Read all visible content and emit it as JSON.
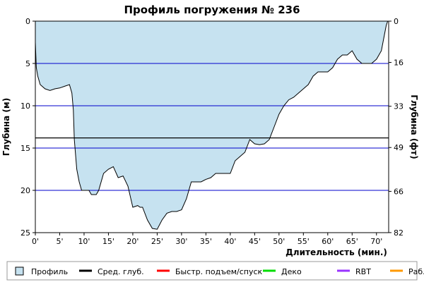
{
  "chart_data": {
    "type": "area",
    "title": "Профиль погружения № 236",
    "xlabel": "Длительность (мин.)",
    "ylabel_left": "Глубина (м)",
    "ylabel_right": "Глубина (фт)",
    "x_range": [
      0,
      72.5
    ],
    "y_range": [
      0,
      25
    ],
    "y_inverted": true,
    "x_ticks": [
      0,
      5,
      10,
      15,
      20,
      25,
      30,
      35,
      40,
      45,
      50,
      55,
      60,
      65,
      70
    ],
    "x_tick_labels": [
      "0'",
      "5'",
      "10'",
      "15'",
      "20'",
      "25'",
      "30'",
      "35'",
      "40'",
      "45'",
      "50'",
      "55'",
      "60'",
      "65'",
      "70'"
    ],
    "y_ticks_left": [
      0,
      5,
      10,
      15,
      20,
      25
    ],
    "y_tick_labels_left": [
      "0",
      "5",
      "10",
      "15",
      "20",
      "25"
    ],
    "y_ticks_right_ft": [
      0,
      16,
      33,
      49,
      66,
      82
    ],
    "y_tick_labels_right": [
      "0",
      "16",
      "33",
      "49",
      "66",
      "82"
    ],
    "grid": "horizontal",
    "colors": {
      "profile_fill": "#c6e2f0",
      "profile_line": "#000000",
      "grid_line": "#0000cc",
      "avg_depth_line": "#000000",
      "ascent_line": "#ff0000",
      "deco": "#00dd00",
      "rbt": "#9933ff",
      "work": "#ff9900"
    },
    "average_depth": 13.8,
    "series": [
      {
        "name": "Профиль",
        "x": [
          0,
          0.2,
          0.5,
          1,
          2,
          3,
          4,
          5,
          6,
          7,
          7.5,
          7.8,
          8,
          8.5,
          9,
          9.5,
          10,
          11,
          11.5,
          12.5,
          13,
          14,
          15,
          16,
          17,
          18,
          19,
          20,
          21,
          21.5,
          22,
          23,
          24,
          25,
          26,
          27,
          28,
          29,
          30,
          31,
          32,
          33,
          34,
          35,
          36,
          37,
          38,
          39,
          40,
          41,
          42,
          43,
          44,
          45,
          46,
          47,
          48,
          49,
          50,
          51,
          52,
          53,
          54,
          55,
          56,
          57,
          58,
          59,
          60,
          61,
          62,
          63,
          64,
          65,
          66,
          67,
          68,
          69,
          70,
          71,
          71.5,
          72,
          72.3
        ],
        "y": [
          2.5,
          5.5,
          6.5,
          7.5,
          8.0,
          8.2,
          8.0,
          7.9,
          7.7,
          7.5,
          8.5,
          10.5,
          14.0,
          17.5,
          19.0,
          20.0,
          20.0,
          20.0,
          20.5,
          20.5,
          20.0,
          18.0,
          17.5,
          17.2,
          18.5,
          18.3,
          19.5,
          22.0,
          21.8,
          22.0,
          22.0,
          23.5,
          24.5,
          24.6,
          23.5,
          22.7,
          22.5,
          22.5,
          22.3,
          21.0,
          19.0,
          19.0,
          19.0,
          18.7,
          18.5,
          18.0,
          18.0,
          18.0,
          18.0,
          16.5,
          16.0,
          15.5,
          14.0,
          14.5,
          14.6,
          14.5,
          14.0,
          12.5,
          11.0,
          10.0,
          9.3,
          9.0,
          8.5,
          8.0,
          7.5,
          6.5,
          6.0,
          6.0,
          6.0,
          5.5,
          4.5,
          4.0,
          4.0,
          3.5,
          4.5,
          5.0,
          5.0,
          5.0,
          4.5,
          3.5,
          2.0,
          0.5,
          0
        ]
      }
    ],
    "legend": {
      "placement": "bottom",
      "items": [
        {
          "label": "Профиль",
          "type": "box",
          "color": "#c6e2f0"
        },
        {
          "label": "Сред. глуб.",
          "type": "line",
          "color": "#000000"
        },
        {
          "label": "Быстр. подъем/спуск",
          "type": "line",
          "color": "#ff0000"
        },
        {
          "label": "Деко",
          "type": "line",
          "color": "#00dd00"
        },
        {
          "label": "RBT",
          "type": "line",
          "color": "#9933ff"
        },
        {
          "label": "Раб.",
          "type": "line",
          "color": "#ff9900"
        }
      ]
    }
  }
}
